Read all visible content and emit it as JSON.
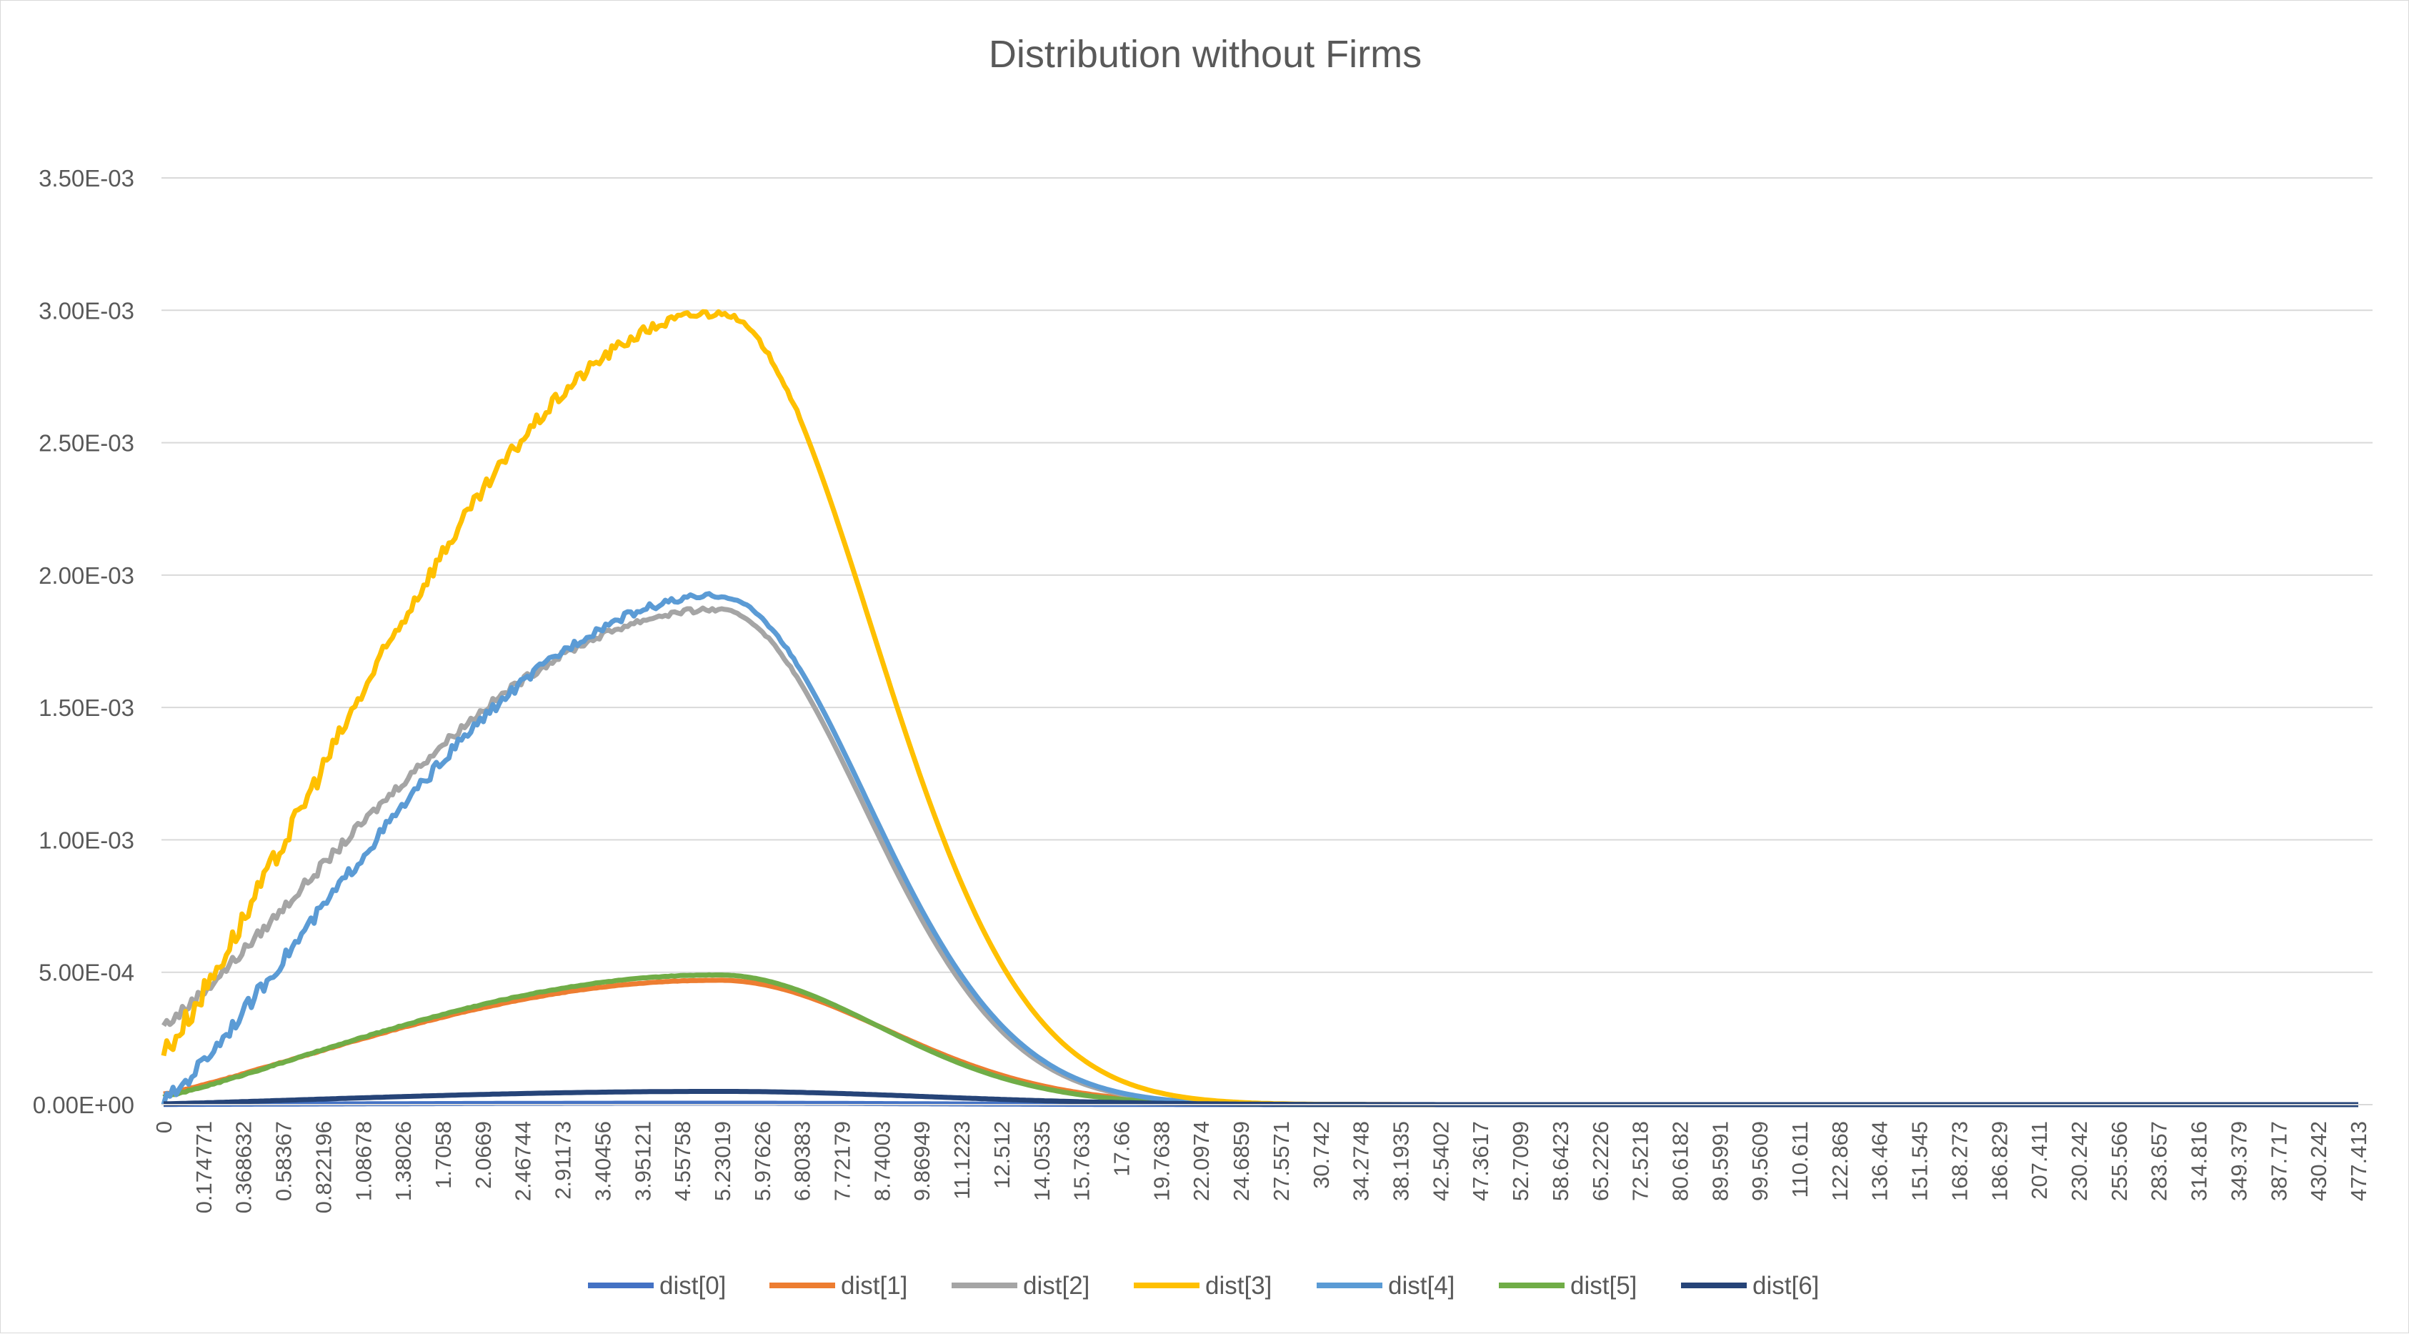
{
  "chart_data": {
    "type": "line",
    "title": "Distribution without Firms",
    "xlabel": "",
    "ylabel": "",
    "ylim": [
      0,
      0.0035
    ],
    "y_ticks": [
      "0.00E+00",
      "5.00E-04",
      "1.00E-03",
      "1.50E-03",
      "2.00E-03",
      "2.50E-03",
      "3.00E-03",
      "3.50E-03"
    ],
    "y_tick_values": [
      0,
      0.0005,
      0.001,
      0.0015,
      0.002,
      0.0025,
      0.003,
      0.0035
    ],
    "x_tick_labels": [
      "0",
      "0.174771",
      "0.368632",
      "0.58367",
      "0.822196",
      "1.08678",
      "1.38026",
      "1.7058",
      "2.0669",
      "2.46744",
      "2.91173",
      "3.40456",
      "3.95121",
      "4.55758",
      "5.23019",
      "5.97626",
      "6.80383",
      "7.72179",
      "8.74003",
      "9.86949",
      "11.1223",
      "12.512",
      "14.0535",
      "15.7633",
      "17.66",
      "19.7638",
      "22.0974",
      "24.6859",
      "27.5571",
      "30.742",
      "34.2748",
      "38.1935",
      "42.5402",
      "47.3617",
      "52.7099",
      "58.6423",
      "65.2226",
      "72.5218",
      "80.6182",
      "89.5991",
      "99.5609",
      "110.611",
      "122.868",
      "136.464",
      "151.545",
      "168.273",
      "186.829",
      "207.411",
      "230.242",
      "255.566",
      "283.657",
      "314.816",
      "349.379",
      "387.717",
      "430.242",
      "477.413"
    ],
    "grid": true,
    "legend_position": "bottom",
    "series": [
      {
        "name": "dist[0]",
        "color": "#4472c4",
        "peak": 5.5e-06,
        "sigma": 11.0,
        "noise": 0.2,
        "start": 8e-07
      },
      {
        "name": "dist[1]",
        "color": "#ed7d31",
        "peak": 0.00047,
        "sigma": 9.2,
        "noise": 0.1,
        "start": 4e-05
      },
      {
        "name": "dist[2]",
        "color": "#a5a5a5",
        "peak": 0.00187,
        "sigma": 8.0,
        "noise": 0.4,
        "start": 0.0003
      },
      {
        "name": "dist[3]",
        "color": "#ffc000",
        "peak": 0.00299,
        "sigma": 8.4,
        "noise": 0.5,
        "start": 0.0002
      },
      {
        "name": "dist[4]",
        "color": "#5b9bd5",
        "peak": 0.00192,
        "sigma": 8.1,
        "noise": 0.5,
        "start": 1e-05
      },
      {
        "name": "dist[5]",
        "color": "#70ad47",
        "peak": 0.00049,
        "sigma": 8.8,
        "noise": 0.15,
        "start": 3e-05
      },
      {
        "name": "dist[6]",
        "color": "#264478",
        "peak": 5e-05,
        "sigma": 11.5,
        "noise": 0.05,
        "start": 3e-06
      }
    ]
  }
}
